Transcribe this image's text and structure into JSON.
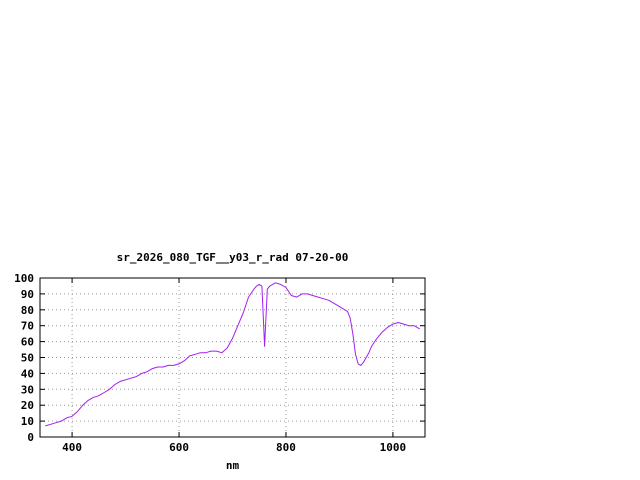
{
  "chart_data": {
    "type": "line",
    "title": "sr_2026_080_TGF__y03_r_rad 07-20-00",
    "xlabel": "nm",
    "ylabel": "",
    "xlim": [
      340,
      1060
    ],
    "ylim": [
      0,
      100
    ],
    "xticks": [
      400,
      600,
      800,
      1000
    ],
    "yticks": [
      0,
      10,
      20,
      30,
      40,
      50,
      60,
      70,
      80,
      90,
      100
    ],
    "grid": true,
    "legend": "none",
    "line_color": "#a020f0",
    "grid_color": "#9a9a9a",
    "border_color": "#000000",
    "series": [
      {
        "name": "sr_2026_080_TGF__y03_r_rad",
        "x": [
          350,
          360,
          370,
          380,
          390,
          400,
          410,
          420,
          430,
          440,
          450,
          460,
          470,
          480,
          490,
          500,
          510,
          520,
          530,
          540,
          550,
          560,
          570,
          580,
          590,
          600,
          610,
          620,
          630,
          640,
          650,
          660,
          670,
          680,
          690,
          700,
          710,
          720,
          730,
          740,
          745,
          750,
          755,
          760,
          765,
          770,
          775,
          780,
          790,
          800,
          810,
          820,
          830,
          840,
          850,
          860,
          870,
          880,
          890,
          900,
          910,
          915,
          920,
          925,
          930,
          935,
          940,
          945,
          950,
          955,
          960,
          970,
          980,
          990,
          1000,
          1010,
          1020,
          1030,
          1040,
          1050
        ],
        "y": [
          7,
          8,
          9,
          10,
          12,
          13,
          16,
          20,
          23,
          25,
          26,
          28,
          30,
          33,
          35,
          36,
          37,
          38,
          40,
          41,
          43,
          44,
          44,
          45,
          45,
          46,
          48,
          51,
          52,
          53,
          53,
          54,
          54,
          53,
          56,
          62,
          70,
          78,
          88,
          93,
          95,
          96,
          95,
          57,
          93,
          95,
          96,
          97,
          96,
          94,
          89,
          88,
          90,
          90,
          89,
          88,
          87,
          86,
          84,
          82,
          80,
          79,
          75,
          65,
          52,
          46,
          45,
          47,
          50,
          53,
          57,
          62,
          66,
          69,
          71,
          72,
          71,
          70,
          70,
          68
        ]
      }
    ]
  },
  "layout_note": ""
}
